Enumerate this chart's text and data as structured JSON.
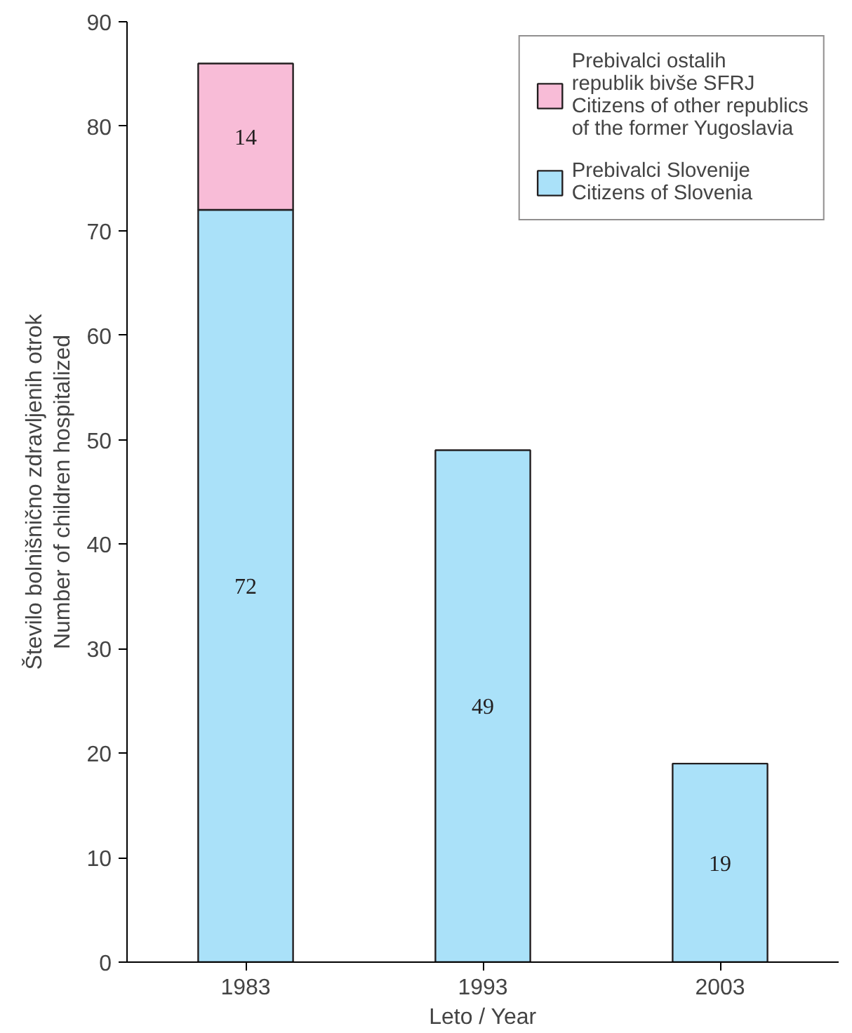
{
  "chart_data": {
    "type": "bar",
    "stacked": true,
    "xlabel": "Leto / Year",
    "ylabel": "Število bolnišnično zdravljenih otrok\nNumber of children hospitalized",
    "categories": [
      "1983",
      "1993",
      "2003"
    ],
    "series": [
      {
        "name": "Prebivalci Slovenije\nCitizens of Slovenia",
        "color": "#aae1f9",
        "values": [
          72,
          49,
          19
        ]
      },
      {
        "name": "Prebivalci ostalih\nrepublik bivše SFRJ\nCitizens of other republics\nof the former Yugoslavia",
        "color": "#f8bcd7",
        "values": [
          14,
          null,
          null
        ]
      }
    ],
    "ylim": [
      0,
      90
    ],
    "yticks": [
      0,
      10,
      20,
      30,
      40,
      50,
      60,
      70,
      80,
      90
    ],
    "grid": false,
    "legend": "top right",
    "data_labels": true
  }
}
